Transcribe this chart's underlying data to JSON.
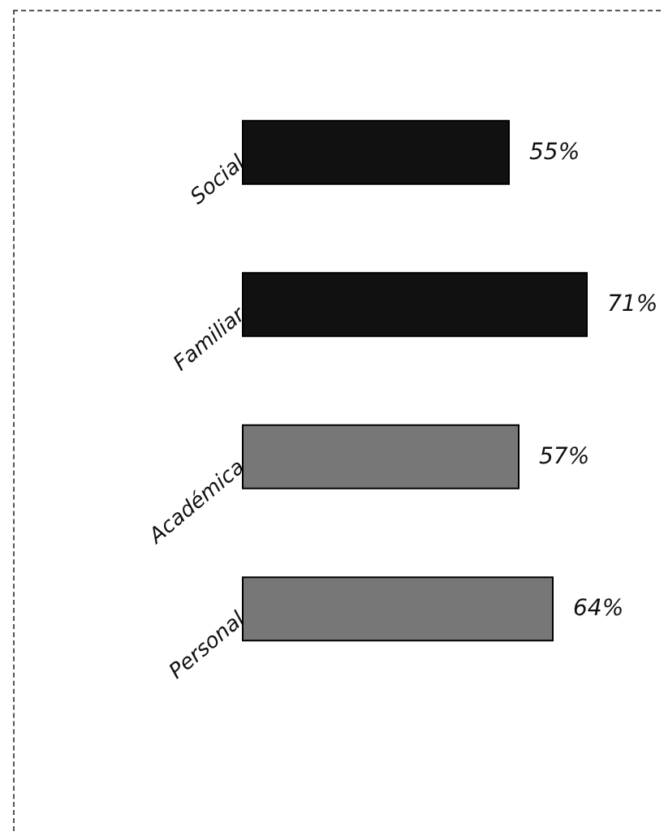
{
  "chart_data": {
    "type": "bar",
    "orientation": "horizontal",
    "categories": [
      "Social",
      "Familiar",
      "Académica",
      "Personal"
    ],
    "values": [
      55,
      71,
      57,
      64
    ],
    "colors": [
      "#111111",
      "#111111",
      "#777777",
      "#777777"
    ],
    "value_labels": [
      "55%",
      "71%",
      "57%",
      "64%"
    ]
  }
}
